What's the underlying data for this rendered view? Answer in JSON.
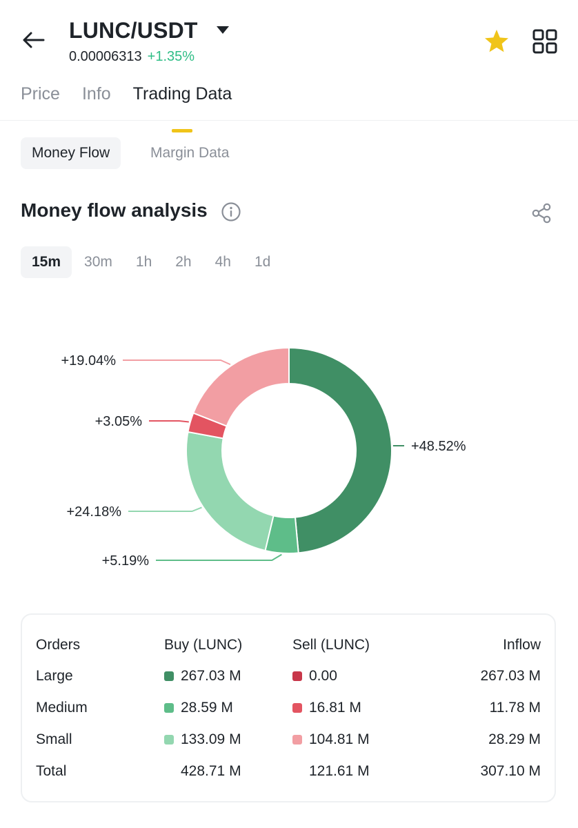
{
  "header": {
    "pair": "LUNC/USDT",
    "last_price": "0.00006313",
    "change": "+1.35%",
    "icons": [
      "back-arrow-icon",
      "caret-down-icon",
      "star-icon",
      "grid-icon"
    ],
    "star_color": "#f0c419"
  },
  "tabs": [
    {
      "label": "Price",
      "active": false
    },
    {
      "label": "Info",
      "active": false
    },
    {
      "label": "Trading Data",
      "active": true
    }
  ],
  "subtabs": {
    "money_flow": "Money Flow",
    "margin_data": "Margin Data"
  },
  "section": {
    "title": "Money flow analysis",
    "icons": [
      "info-icon",
      "share-icon"
    ]
  },
  "intervals": [
    "15m",
    "30m",
    "1h",
    "2h",
    "4h",
    "1d"
  ],
  "active_interval": "15m",
  "chart_data": {
    "type": "pie",
    "donut": true,
    "slices": [
      {
        "label": "+48.52%",
        "value": 48.52,
        "color": "#408f65",
        "group": "Large Buy"
      },
      {
        "label": "+5.19%",
        "value": 5.19,
        "color": "#5ebd89",
        "group": "Medium Buy"
      },
      {
        "label": "+24.18%",
        "value": 24.18,
        "color": "#93d7b0",
        "group": "Small Buy"
      },
      {
        "label": "+3.05%",
        "value": 3.05,
        "color": "#e35461",
        "group": "Medium Sell"
      },
      {
        "label": "+19.04%",
        "value": 19.04,
        "color": "#f29ea3",
        "group": "Small Sell"
      }
    ]
  },
  "table": {
    "headers": [
      "Orders",
      "Buy (LUNC)",
      "Sell (LUNC)",
      "Inflow"
    ],
    "rows": [
      {
        "order": "Large",
        "buy": "267.03 M",
        "sell": "0.00",
        "inflow": "267.03 M",
        "buy_color": "#408f65",
        "sell_color": "#c8374a"
      },
      {
        "order": "Medium",
        "buy": "28.59 M",
        "sell": "16.81 M",
        "inflow": "11.78 M",
        "buy_color": "#5ebd89",
        "sell_color": "#e35461"
      },
      {
        "order": "Small",
        "buy": "133.09 M",
        "sell": "104.81 M",
        "inflow": "28.29 M",
        "buy_color": "#93d7b0",
        "sell_color": "#f29ea3"
      }
    ],
    "total": {
      "order": "Total",
      "buy": "428.71 M",
      "sell": "121.61 M",
      "inflow": "307.10 M"
    }
  }
}
